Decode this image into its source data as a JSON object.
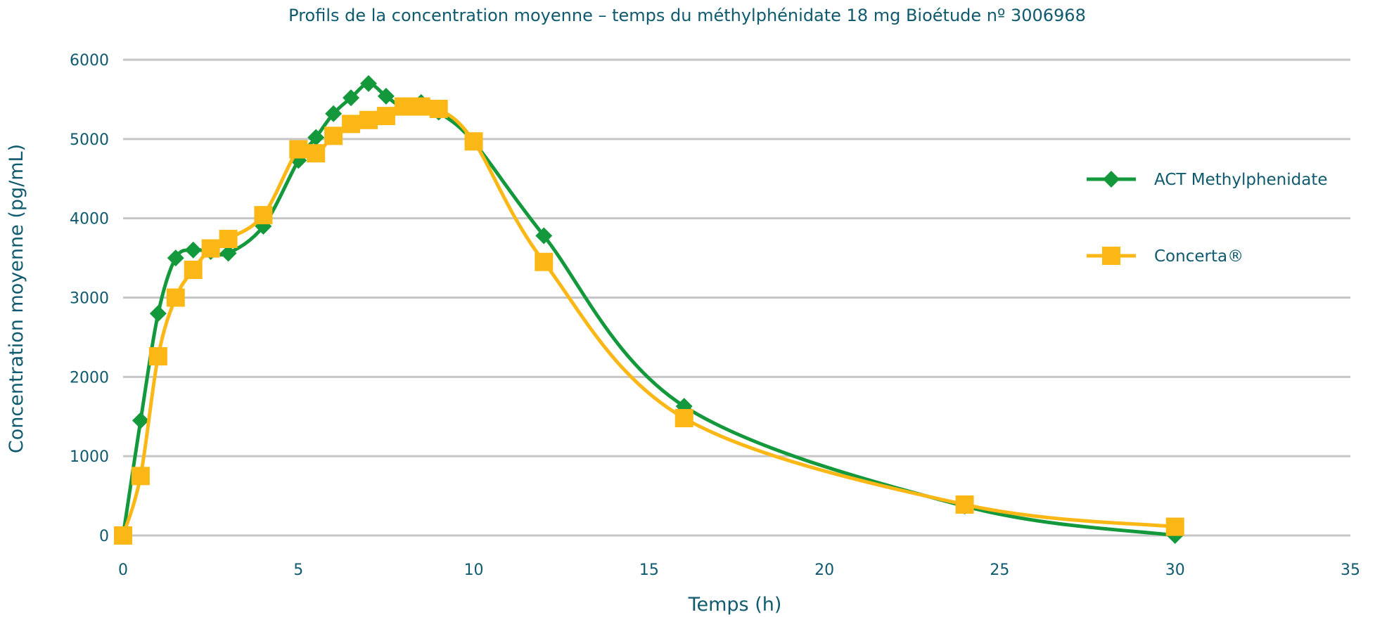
{
  "chart_data": {
    "type": "line",
    "title": "Profils de la concentration moyenne – temps du méthylphénidate 18 mg Bioétude nº 3006968",
    "xlabel": "Temps (h)",
    "ylabel": "Concentration moyenne (pg/mL)",
    "xlim": [
      0,
      35
    ],
    "ylim": [
      0,
      6000
    ],
    "x_ticks": [
      "0",
      "5",
      "10",
      "15",
      "20",
      "25",
      "30",
      "35"
    ],
    "y_ticks": [
      "0",
      "1000",
      "2000",
      "3000",
      "4000",
      "5000",
      "6000"
    ],
    "grid": "horizontal",
    "legend_position": "right",
    "series": [
      {
        "name": "ACT Methylphenidate",
        "color": "#13993b",
        "marker": "diamond",
        "x": [
          0,
          0.5,
          1,
          1.5,
          2,
          2.5,
          3,
          4,
          5,
          5.5,
          6,
          6.5,
          7,
          7.5,
          8,
          8.5,
          9,
          10,
          12,
          16,
          24,
          30
        ],
        "y": [
          0,
          1450,
          2800,
          3500,
          3600,
          3580,
          3560,
          3900,
          4730,
          5020,
          5320,
          5520,
          5700,
          5540,
          5400,
          5460,
          5340,
          4960,
          3780,
          1630,
          370,
          0
        ]
      },
      {
        "name": "Concerta®",
        "color": "#fbb716",
        "marker": "square",
        "x": [
          0,
          0.5,
          1,
          1.5,
          2,
          2.5,
          3,
          4,
          5,
          5.5,
          6,
          6.5,
          7,
          7.5,
          8,
          8.5,
          9,
          10,
          12,
          16,
          24,
          30
        ],
        "y": [
          0,
          750,
          2260,
          3000,
          3350,
          3620,
          3740,
          4040,
          4870,
          4820,
          5040,
          5190,
          5240,
          5290,
          5410,
          5410,
          5380,
          4970,
          3450,
          1480,
          390,
          110
        ]
      }
    ]
  }
}
